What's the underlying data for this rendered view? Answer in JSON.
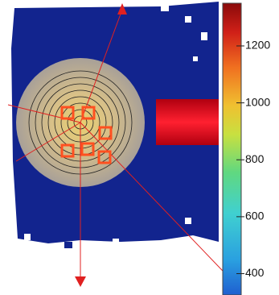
{
  "chart_data": {
    "type": "heatmap",
    "zlim": [
      325,
      1350
    ],
    "zticks": [
      400,
      600,
      800,
      1000,
      1200
    ]
  }
}
